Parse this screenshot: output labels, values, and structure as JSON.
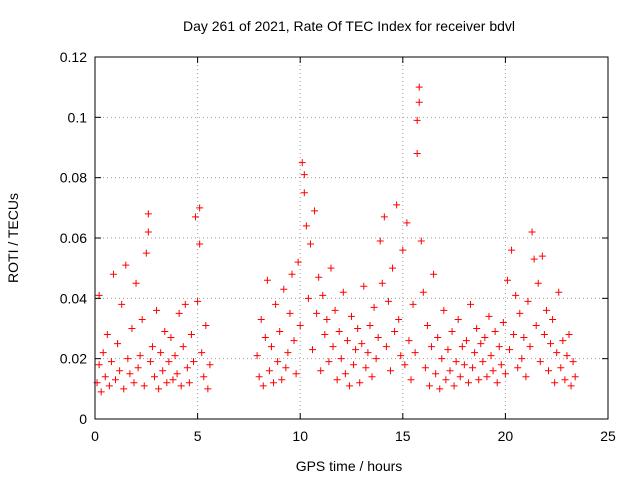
{
  "chart_data": {
    "type": "scatter",
    "title": "Day 261 of 2021, Rate Of TEC Index for receiver bdvl",
    "xlabel": "GPS time / hours",
    "ylabel": "ROTI / TECUs",
    "xlim": [
      0,
      25
    ],
    "ylim": [
      0,
      0.12
    ],
    "xticks": [
      0,
      5,
      10,
      15,
      20,
      25
    ],
    "yticks": [
      0,
      0.02,
      0.04,
      0.06,
      0.08,
      0.1,
      0.12
    ],
    "xtick_labels": [
      "0",
      "5",
      "10",
      "15",
      "20",
      "25"
    ],
    "ytick_labels": [
      "0",
      "0.02",
      "0.04",
      "0.06",
      "0.08",
      "0.1",
      "0.12"
    ],
    "grid": true,
    "marker": "+",
    "color": "#ff0000",
    "series": [
      {
        "points": [
          [
            0.1,
            0.012
          ],
          [
            0.2,
            0.018
          ],
          [
            0.2,
            0.041
          ],
          [
            0.3,
            0.009
          ],
          [
            0.4,
            0.022
          ],
          [
            0.5,
            0.014
          ],
          [
            0.6,
            0.028
          ],
          [
            0.7,
            0.011
          ],
          [
            0.8,
            0.019
          ],
          [
            0.9,
            0.048
          ],
          [
            1.0,
            0.013
          ],
          [
            1.1,
            0.025
          ],
          [
            1.2,
            0.016
          ],
          [
            1.3,
            0.038
          ],
          [
            1.4,
            0.01
          ],
          [
            1.5,
            0.051
          ],
          [
            1.6,
            0.02
          ],
          [
            1.7,
            0.015
          ],
          [
            1.8,
            0.03
          ],
          [
            1.9,
            0.012
          ],
          [
            2.0,
            0.045
          ],
          [
            2.1,
            0.017
          ],
          [
            2.2,
            0.021
          ],
          [
            2.3,
            0.033
          ],
          [
            2.4,
            0.011
          ],
          [
            2.5,
            0.055
          ],
          [
            2.6,
            0.068
          ],
          [
            2.6,
            0.062
          ],
          [
            2.7,
            0.019
          ],
          [
            2.8,
            0.024
          ],
          [
            2.9,
            0.014
          ],
          [
            3.0,
            0.036
          ],
          [
            3.1,
            0.01
          ],
          [
            3.2,
            0.022
          ],
          [
            3.3,
            0.016
          ],
          [
            3.4,
            0.029
          ],
          [
            3.5,
            0.012
          ],
          [
            3.6,
            0.019
          ],
          [
            3.7,
            0.027
          ],
          [
            3.8,
            0.013
          ],
          [
            3.9,
            0.021
          ],
          [
            4.0,
            0.015
          ],
          [
            4.1,
            0.035
          ],
          [
            4.2,
            0.011
          ],
          [
            4.3,
            0.024
          ],
          [
            4.4,
            0.038
          ],
          [
            4.5,
            0.017
          ],
          [
            4.6,
            0.012
          ],
          [
            4.7,
            0.028
          ],
          [
            4.8,
            0.019
          ],
          [
            4.9,
            0.067
          ],
          [
            5.0,
            0.039
          ],
          [
            5.1,
            0.07
          ],
          [
            5.1,
            0.058
          ],
          [
            5.2,
            0.022
          ],
          [
            5.3,
            0.014
          ],
          [
            5.4,
            0.031
          ],
          [
            5.5,
            0.01
          ],
          [
            5.6,
            0.018
          ],
          [
            7.9,
            0.021
          ],
          [
            8.0,
            0.014
          ],
          [
            8.1,
            0.033
          ],
          [
            8.2,
            0.011
          ],
          [
            8.3,
            0.027
          ],
          [
            8.4,
            0.046
          ],
          [
            8.5,
            0.016
          ],
          [
            8.6,
            0.024
          ],
          [
            8.7,
            0.012
          ],
          [
            8.8,
            0.038
          ],
          [
            8.9,
            0.019
          ],
          [
            9.0,
            0.029
          ],
          [
            9.1,
            0.013
          ],
          [
            9.2,
            0.043
          ],
          [
            9.3,
            0.017
          ],
          [
            9.4,
            0.022
          ],
          [
            9.5,
            0.035
          ],
          [
            9.6,
            0.048
          ],
          [
            9.7,
            0.026
          ],
          [
            9.8,
            0.015
          ],
          [
            9.9,
            0.052
          ],
          [
            10.0,
            0.031
          ],
          [
            10.1,
            0.085
          ],
          [
            10.2,
            0.081
          ],
          [
            10.2,
            0.075
          ],
          [
            10.3,
            0.064
          ],
          [
            10.4,
            0.04
          ],
          [
            10.5,
            0.058
          ],
          [
            10.6,
            0.023
          ],
          [
            10.7,
            0.069
          ],
          [
            10.8,
            0.035
          ],
          [
            10.9,
            0.047
          ],
          [
            11.0,
            0.016
          ],
          [
            11.1,
            0.041
          ],
          [
            11.2,
            0.028
          ],
          [
            11.3,
            0.033
          ],
          [
            11.4,
            0.019
          ],
          [
            11.5,
            0.05
          ],
          [
            11.6,
            0.024
          ],
          [
            11.7,
            0.036
          ],
          [
            11.8,
            0.013
          ],
          [
            11.9,
            0.029
          ],
          [
            12.0,
            0.02
          ],
          [
            12.1,
            0.042
          ],
          [
            12.2,
            0.015
          ],
          [
            12.3,
            0.026
          ],
          [
            12.4,
            0.011
          ],
          [
            12.5,
            0.034
          ],
          [
            12.6,
            0.018
          ],
          [
            12.7,
            0.023
          ],
          [
            12.8,
            0.03
          ],
          [
            12.9,
            0.012
          ],
          [
            13.0,
            0.025
          ],
          [
            13.1,
            0.044
          ],
          [
            13.2,
            0.017
          ],
          [
            13.3,
            0.022
          ],
          [
            13.4,
            0.031
          ],
          [
            13.5,
            0.014
          ],
          [
            13.6,
            0.037
          ],
          [
            13.7,
            0.02
          ],
          [
            13.8,
            0.027
          ],
          [
            13.9,
            0.059
          ],
          [
            14.0,
            0.045
          ],
          [
            14.1,
            0.067
          ],
          [
            14.2,
            0.024
          ],
          [
            14.3,
            0.039
          ],
          [
            14.4,
            0.016
          ],
          [
            14.5,
            0.05
          ],
          [
            14.6,
            0.029
          ],
          [
            14.7,
            0.071
          ],
          [
            14.8,
            0.033
          ],
          [
            14.9,
            0.021
          ],
          [
            15.0,
            0.056
          ],
          [
            15.1,
            0.018
          ],
          [
            15.2,
            0.065
          ],
          [
            15.3,
            0.026
          ],
          [
            15.4,
            0.013
          ],
          [
            15.5,
            0.038
          ],
          [
            15.6,
            0.022
          ],
          [
            15.7,
            0.088
          ],
          [
            15.7,
            0.099
          ],
          [
            15.8,
            0.11
          ],
          [
            15.8,
            0.105
          ],
          [
            15.9,
            0.059
          ],
          [
            16.0,
            0.042
          ],
          [
            16.1,
            0.017
          ],
          [
            16.2,
            0.031
          ],
          [
            16.3,
            0.011
          ],
          [
            16.4,
            0.024
          ],
          [
            16.5,
            0.048
          ],
          [
            16.6,
            0.015
          ],
          [
            16.7,
            0.027
          ],
          [
            16.8,
            0.01
          ],
          [
            16.9,
            0.02
          ],
          [
            17.0,
            0.036
          ],
          [
            17.1,
            0.013
          ],
          [
            17.2,
            0.023
          ],
          [
            17.3,
            0.016
          ],
          [
            17.4,
            0.029
          ],
          [
            17.5,
            0.011
          ],
          [
            17.6,
            0.019
          ],
          [
            17.7,
            0.033
          ],
          [
            17.8,
            0.014
          ],
          [
            17.9,
            0.024
          ],
          [
            18.0,
            0.018
          ],
          [
            18.1,
            0.026
          ],
          [
            18.2,
            0.012
          ],
          [
            18.3,
            0.038
          ],
          [
            18.4,
            0.017
          ],
          [
            18.5,
            0.022
          ],
          [
            18.6,
            0.03
          ],
          [
            18.7,
            0.013
          ],
          [
            18.8,
            0.025
          ],
          [
            18.9,
            0.019
          ],
          [
            19.0,
            0.027
          ],
          [
            19.1,
            0.014
          ],
          [
            19.2,
            0.034
          ],
          [
            19.3,
            0.021
          ],
          [
            19.4,
            0.016
          ],
          [
            19.5,
            0.029
          ],
          [
            19.6,
            0.012
          ],
          [
            19.7,
            0.024
          ],
          [
            19.8,
            0.018
          ],
          [
            19.9,
            0.032
          ],
          [
            20.0,
            0.015
          ],
          [
            20.1,
            0.046
          ],
          [
            20.2,
            0.023
          ],
          [
            20.3,
            0.056
          ],
          [
            20.4,
            0.028
          ],
          [
            20.5,
            0.041
          ],
          [
            20.6,
            0.017
          ],
          [
            20.7,
            0.035
          ],
          [
            20.8,
            0.02
          ],
          [
            20.9,
            0.027
          ],
          [
            21.0,
            0.014
          ],
          [
            21.1,
            0.039
          ],
          [
            21.2,
            0.024
          ],
          [
            21.3,
            0.062
          ],
          [
            21.4,
            0.053
          ],
          [
            21.5,
            0.031
          ],
          [
            21.6,
            0.045
          ],
          [
            21.7,
            0.019
          ],
          [
            21.8,
            0.054
          ],
          [
            21.9,
            0.028
          ],
          [
            22.0,
            0.036
          ],
          [
            22.1,
            0.016
          ],
          [
            22.2,
            0.025
          ],
          [
            22.3,
            0.033
          ],
          [
            22.4,
            0.012
          ],
          [
            22.5,
            0.022
          ],
          [
            22.6,
            0.042
          ],
          [
            22.7,
            0.017
          ],
          [
            22.8,
            0.026
          ],
          [
            22.9,
            0.013
          ],
          [
            23.0,
            0.021
          ],
          [
            23.1,
            0.028
          ],
          [
            23.2,
            0.011
          ],
          [
            23.3,
            0.019
          ],
          [
            23.4,
            0.014
          ]
        ]
      }
    ]
  }
}
